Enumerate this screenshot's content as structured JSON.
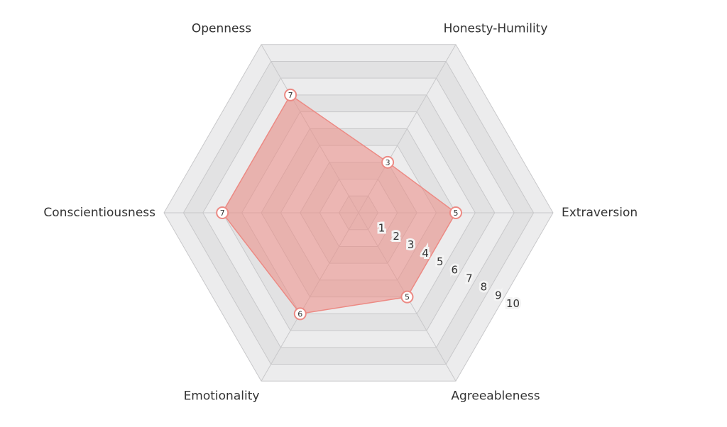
{
  "chart_data": {
    "type": "radar",
    "categories": [
      "Openness",
      "Honesty-Humility",
      "Extraversion",
      "Agreeableness",
      "Emotionality",
      "Conscientiousness"
    ],
    "values": [
      7,
      3,
      5,
      5,
      6,
      7
    ],
    "color": "#ec8a84",
    "rlim": [
      0,
      10
    ],
    "rticks": [
      1,
      2,
      3,
      4,
      5,
      6,
      7,
      8,
      9,
      10
    ],
    "grid": true
  }
}
